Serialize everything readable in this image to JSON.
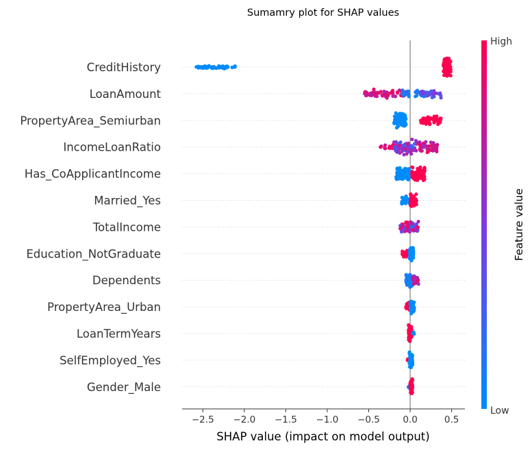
{
  "chart_data": {
    "type": "scatter",
    "subtype": "shap-beeswarm",
    "title": "Sumamry plot for SHAP values",
    "xlabel": "SHAP value (impact on model output)",
    "ylabel": "",
    "xlim": [
      -2.75,
      0.66
    ],
    "xticks": [
      -2.5,
      -2.0,
      -1.5,
      -1.0,
      -0.5,
      0.0,
      0.5
    ],
    "xtick_labels": [
      "−2.5",
      "−2.0",
      "−1.5",
      "−1.0",
      "−0.5",
      "0.0",
      "0.5"
    ],
    "grid": false,
    "zero_line": true,
    "colorbar": {
      "label": "Feature value",
      "high_label": "High",
      "low_label": "Low",
      "low_color": "#008bfb",
      "high_color": "#ff0051"
    },
    "features": [
      {
        "name": "CreditHistory",
        "clusters": [
          {
            "min": -2.6,
            "max": -2.1,
            "spread": 2.5,
            "n": 60,
            "v_lo": 0.0,
            "v_hi": 0.0
          },
          {
            "min": 0.4,
            "max": 0.49,
            "spread": 14,
            "n": 90,
            "v_lo": 1.0,
            "v_hi": 1.0
          }
        ]
      },
      {
        "name": "LoanAmount",
        "clusters": [
          {
            "min": -0.55,
            "max": -0.05,
            "spread": 7,
            "n": 55,
            "v_lo": 0.7,
            "v_hi": 1.0
          },
          {
            "min": -0.1,
            "max": 0.3,
            "spread": 6,
            "n": 45,
            "v_lo": 0.0,
            "v_hi": 0.2
          },
          {
            "min": 0.1,
            "max": 0.38,
            "spread": 7,
            "n": 30,
            "v_lo": 0.2,
            "v_hi": 0.6
          }
        ]
      },
      {
        "name": "PropertyArea_Semiurban",
        "clusters": [
          {
            "min": -0.2,
            "max": -0.05,
            "spread": 12,
            "n": 90,
            "v_lo": 0.0,
            "v_hi": 0.0
          },
          {
            "min": 0.12,
            "max": 0.38,
            "spread": 7,
            "n": 55,
            "v_lo": 1.0,
            "v_hi": 1.0
          }
        ]
      },
      {
        "name": "IncomeLoanRatio",
        "clusters": [
          {
            "min": -0.38,
            "max": -0.1,
            "spread": 4,
            "n": 25,
            "v_lo": 0.75,
            "v_hi": 1.0
          },
          {
            "min": -0.2,
            "max": 0.08,
            "spread": 12,
            "n": 80,
            "v_lo": 0.2,
            "v_hi": 0.8
          },
          {
            "min": 0.1,
            "max": 0.33,
            "spread": 9,
            "n": 50,
            "v_lo": 0.6,
            "v_hi": 1.0
          }
        ]
      },
      {
        "name": "Has_CoApplicantIncome",
        "clusters": [
          {
            "min": -0.17,
            "max": 0.0,
            "spread": 11,
            "n": 75,
            "v_lo": 0.0,
            "v_hi": 0.0
          },
          {
            "min": 0.02,
            "max": 0.18,
            "spread": 12,
            "n": 70,
            "v_lo": 1.0,
            "v_hi": 1.0
          }
        ]
      },
      {
        "name": "Married_Yes",
        "clusters": [
          {
            "min": -0.12,
            "max": 0.0,
            "spread": 7,
            "n": 30,
            "v_lo": 0.0,
            "v_hi": 0.0
          },
          {
            "min": 0.0,
            "max": 0.08,
            "spread": 11,
            "n": 45,
            "v_lo": 1.0,
            "v_hi": 1.0
          }
        ]
      },
      {
        "name": "TotalIncome",
        "clusters": [
          {
            "min": -0.12,
            "max": 0.1,
            "spread": 9,
            "n": 70,
            "v_lo": 0.2,
            "v_hi": 1.0
          }
        ]
      },
      {
        "name": "Education_NotGraduate",
        "clusters": [
          {
            "min": -0.1,
            "max": 0.0,
            "spread": 5,
            "n": 25,
            "v_lo": 1.0,
            "v_hi": 1.0
          },
          {
            "min": -0.01,
            "max": 0.04,
            "spread": 12,
            "n": 60,
            "v_lo": 0.0,
            "v_hi": 0.0
          }
        ]
      },
      {
        "name": "Dependents",
        "clusters": [
          {
            "min": -0.05,
            "max": 0.03,
            "spread": 12,
            "n": 60,
            "v_lo": 0.0,
            "v_hi": 0.15
          },
          {
            "min": 0.03,
            "max": 0.1,
            "spread": 7,
            "n": 30,
            "v_lo": 0.55,
            "v_hi": 1.0
          }
        ]
      },
      {
        "name": "PropertyArea_Urban",
        "clusters": [
          {
            "min": -0.05,
            "max": 0.0,
            "spread": 8,
            "n": 35,
            "v_lo": 1.0,
            "v_hi": 1.0
          },
          {
            "min": 0.0,
            "max": 0.05,
            "spread": 11,
            "n": 45,
            "v_lo": 0.0,
            "v_hi": 0.0
          }
        ]
      },
      {
        "name": "LoanTermYears",
        "clusters": [
          {
            "min": -0.02,
            "max": 0.02,
            "spread": 13,
            "n": 70,
            "v_lo": 1.0,
            "v_hi": 1.0
          },
          {
            "min": 0.03,
            "max": 0.06,
            "spread": 2,
            "n": 4,
            "v_lo": 0.0,
            "v_hi": 0.0
          }
        ]
      },
      {
        "name": "SelfEmployed_Yes",
        "clusters": [
          {
            "min": -0.04,
            "max": -0.01,
            "spread": 3,
            "n": 6,
            "v_lo": 1.0,
            "v_hi": 1.0
          },
          {
            "min": -0.01,
            "max": 0.03,
            "spread": 13,
            "n": 60,
            "v_lo": 0.0,
            "v_hi": 0.0
          }
        ]
      },
      {
        "name": "Gender_Male",
        "clusters": [
          {
            "min": -0.03,
            "max": 0.0,
            "spread": 3,
            "n": 8,
            "v_lo": 0.0,
            "v_hi": 0.0
          },
          {
            "min": 0.0,
            "max": 0.03,
            "spread": 13,
            "n": 60,
            "v_lo": 1.0,
            "v_hi": 1.0
          }
        ]
      }
    ]
  }
}
